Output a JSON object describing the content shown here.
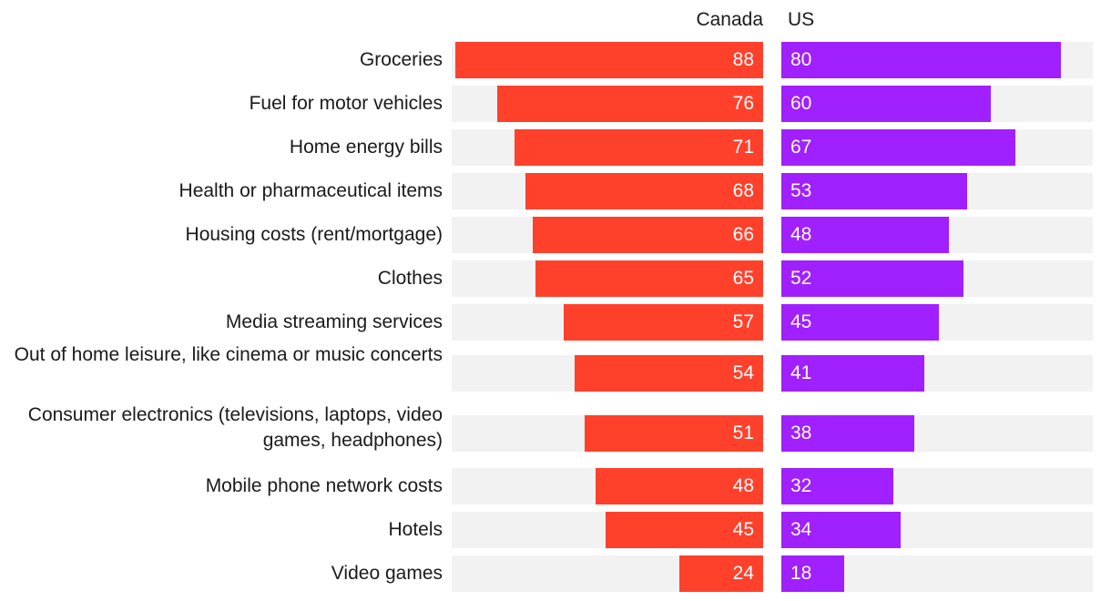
{
  "chart_data": {
    "type": "bar",
    "orientation": "horizontal",
    "categories": [
      "Groceries",
      "Fuel for motor vehicles",
      "Home energy bills",
      "Health or pharmaceutical items",
      "Housing costs (rent/mortgage)",
      "Clothes",
      "Media streaming services",
      "Out of home leisure, like cinema or music concerts",
      "Consumer electronics (televisions, laptops, video games, headphones)",
      "Mobile phone network costs",
      "Hotels",
      "Video games"
    ],
    "series": [
      {
        "name": "Canada",
        "color": "#ff412c",
        "values": [
          88,
          76,
          71,
          68,
          66,
          65,
          57,
          54,
          51,
          48,
          45,
          24
        ]
      },
      {
        "name": "US",
        "color": "#a020ff",
        "values": [
          80,
          60,
          67,
          53,
          48,
          52,
          45,
          41,
          38,
          32,
          34,
          18
        ]
      }
    ],
    "xlim": [
      0,
      100
    ],
    "track_color": "#f2f2f2",
    "grid": false
  }
}
